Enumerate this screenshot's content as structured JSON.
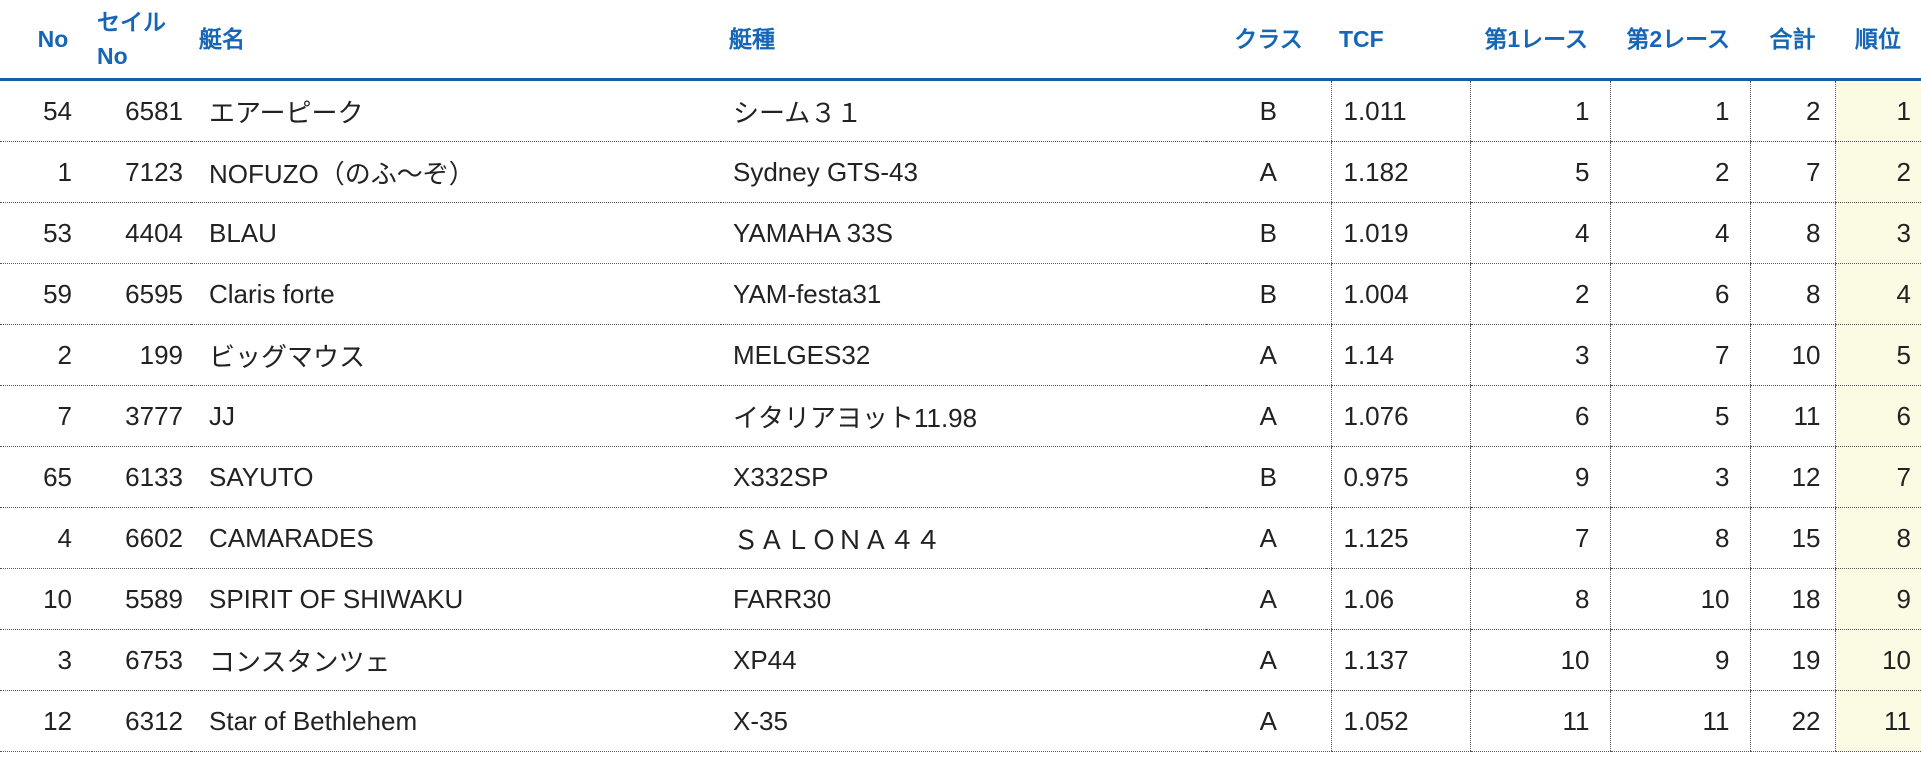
{
  "table": {
    "headers": {
      "no": "No",
      "sail_no_line1": "セイル",
      "sail_no_line2": "No",
      "name": "艇名",
      "type": "艇種",
      "class": "クラス",
      "tcf": "TCF",
      "race1": "第1レース",
      "race2": "第2レース",
      "total": "合計",
      "rank": "順位"
    },
    "rows": [
      {
        "no": "54",
        "sail": "6581",
        "name": "エアーピーク",
        "type": "シーム３１",
        "class": "B",
        "tcf": "1.011",
        "r1": "1",
        "r2": "1",
        "total": "2",
        "rank": "1"
      },
      {
        "no": "1",
        "sail": "7123",
        "name": "NOFUZO（のふ〜ぞ）",
        "type": "Sydney GTS-43",
        "class": "A",
        "tcf": "1.182",
        "r1": "5",
        "r2": "2",
        "total": "7",
        "rank": "2"
      },
      {
        "no": "53",
        "sail": "4404",
        "name": "BLAU",
        "type": "YAMAHA 33S",
        "class": "B",
        "tcf": "1.019",
        "r1": "4",
        "r2": "4",
        "total": "8",
        "rank": "3"
      },
      {
        "no": "59",
        "sail": "6595",
        "name": "Claris forte",
        "type": "YAM-festa31",
        "class": "B",
        "tcf": "1.004",
        "r1": "2",
        "r2": "6",
        "total": "8",
        "rank": "4"
      },
      {
        "no": "2",
        "sail": "199",
        "name": "ビッグマウス",
        "type": "MELGES32",
        "class": "A",
        "tcf": "1.14",
        "r1": "3",
        "r2": "7",
        "total": "10",
        "rank": "5"
      },
      {
        "no": "7",
        "sail": "3777",
        "name": "JJ",
        "type": "イタリアヨット11.98",
        "class": "A",
        "tcf": "1.076",
        "r1": "6",
        "r2": "5",
        "total": "11",
        "rank": "6"
      },
      {
        "no": "65",
        "sail": "6133",
        "name": "SAYUTO",
        "type": "X332SP",
        "class": "B",
        "tcf": "0.975",
        "r1": "9",
        "r2": "3",
        "total": "12",
        "rank": "7"
      },
      {
        "no": "4",
        "sail": "6602",
        "name": "CAMARADES",
        "type": "ＳＡＬＯＮＡ４４",
        "class": "A",
        "tcf": "1.125",
        "r1": "7",
        "r2": "8",
        "total": "15",
        "rank": "8"
      },
      {
        "no": "10",
        "sail": "5589",
        "name": "SPIRIT OF SHIWAKU",
        "type": "FARR30",
        "class": "A",
        "tcf": "1.06",
        "r1": "8",
        "r2": "10",
        "total": "18",
        "rank": "9"
      },
      {
        "no": "3",
        "sail": "6753",
        "name": "コンスタンツェ",
        "type": "XP44",
        "class": "A",
        "tcf": "1.137",
        "r1": "10",
        "r2": "9",
        "total": "19",
        "rank": "10"
      },
      {
        "no": "12",
        "sail": "6312",
        "name": "Star of Bethlehem",
        "type": "X-35",
        "class": "A",
        "tcf": "1.052",
        "r1": "11",
        "r2": "11",
        "total": "22",
        "rank": "11"
      }
    ]
  },
  "colors": {
    "header_text": "#1666b8",
    "header_rule": "#1a5ea8",
    "rank_column_bg": "#fbfbe4"
  }
}
